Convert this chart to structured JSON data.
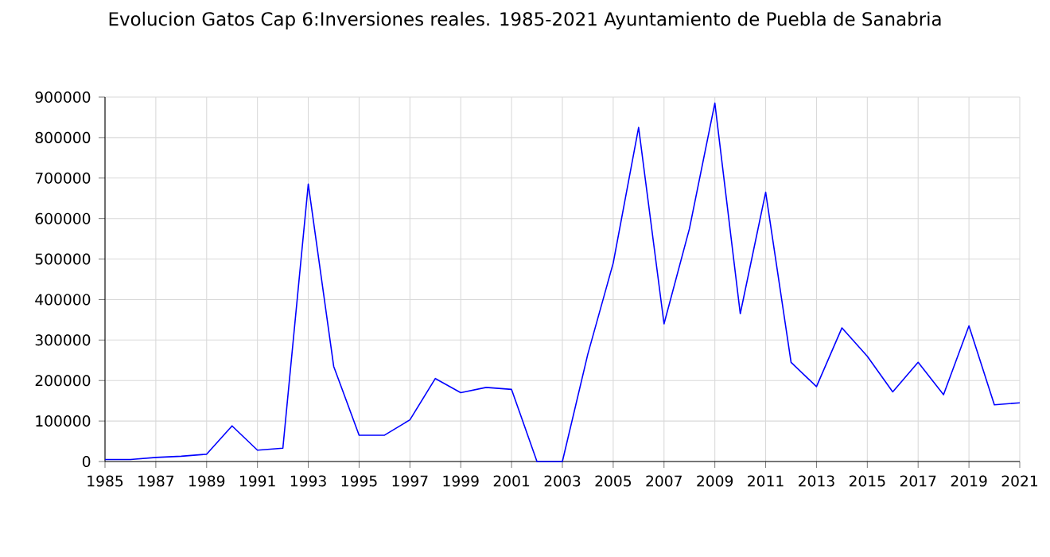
{
  "chart_data": {
    "type": "line",
    "title": "Evolucion Gatos Cap 6:Inversiones reales. 1985-2021 Ayuntamiento de Puebla de Sanabria",
    "x": [
      1985,
      1986,
      1987,
      1988,
      1989,
      1990,
      1991,
      1992,
      1993,
      1994,
      1995,
      1996,
      1997,
      1998,
      1999,
      2000,
      2001,
      2002,
      2003,
      2004,
      2005,
      2006,
      2007,
      2008,
      2009,
      2010,
      2011,
      2012,
      2013,
      2014,
      2015,
      2016,
      2017,
      2018,
      2019,
      2020,
      2021
    ],
    "series": [
      {
        "color": "#0000ff",
        "values": [
          5000,
          5000,
          10000,
          13000,
          18000,
          88000,
          28000,
          33000,
          685000,
          235000,
          65000,
          65000,
          103000,
          205000,
          170000,
          183000,
          178000,
          0,
          0,
          265000,
          490000,
          825000,
          340000,
          575000,
          885000,
          365000,
          665000,
          245000,
          185000,
          330000,
          260000,
          172000,
          245000,
          165000,
          335000,
          140000,
          145000
        ]
      }
    ],
    "xlim": [
      1985,
      2021
    ],
    "ylim": [
      0,
      900000
    ],
    "xticks": [
      1985,
      1987,
      1989,
      1991,
      1993,
      1995,
      1997,
      1999,
      2001,
      2003,
      2005,
      2007,
      2009,
      2011,
      2013,
      2015,
      2017,
      2019,
      2021
    ],
    "yticks": [
      0,
      100000,
      200000,
      300000,
      400000,
      500000,
      600000,
      700000,
      800000,
      900000
    ],
    "grid": true,
    "marker": "none",
    "line_style": "solid"
  }
}
